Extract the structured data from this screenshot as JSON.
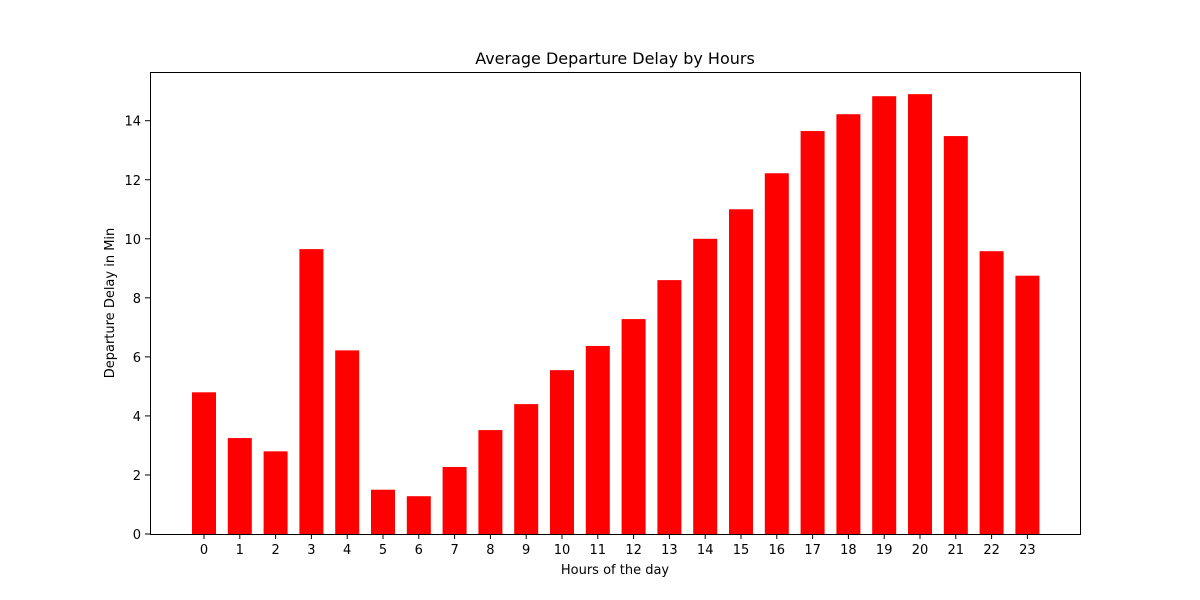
{
  "chart_data": {
    "type": "bar",
    "title": "Average Departure Delay by Hours",
    "xlabel": "Hours of the day",
    "ylabel": "Departure Delay in Min",
    "categories": [
      "0",
      "1",
      "2",
      "3",
      "4",
      "5",
      "6",
      "7",
      "8",
      "9",
      "10",
      "11",
      "12",
      "13",
      "14",
      "15",
      "16",
      "17",
      "18",
      "19",
      "20",
      "21",
      "22",
      "23"
    ],
    "values": [
      4.8,
      3.25,
      2.8,
      9.65,
      6.22,
      1.5,
      1.28,
      2.27,
      3.52,
      4.4,
      5.55,
      6.37,
      7.28,
      8.6,
      10.0,
      11.0,
      12.22,
      13.65,
      14.22,
      14.83,
      14.9,
      13.48,
      9.58,
      8.75
    ],
    "ylim": [
      0,
      15.65
    ],
    "yticks": [
      0,
      2,
      4,
      6,
      8,
      10,
      12,
      14
    ],
    "grid": false,
    "bar_color": "#ff0000"
  }
}
